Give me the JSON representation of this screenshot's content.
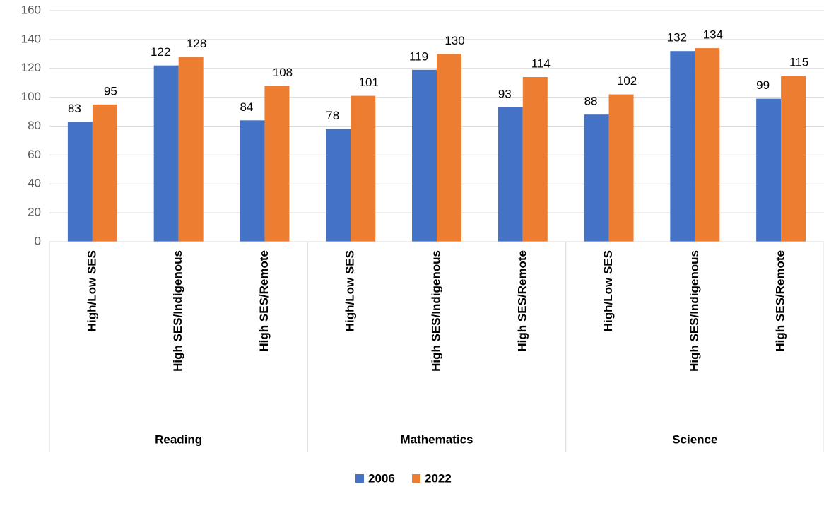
{
  "chart_data": {
    "type": "bar",
    "groups": [
      {
        "name": "Reading",
        "categories": [
          "High/Low SES",
          "High SES/Indigenous",
          "High SES/Remote"
        ]
      },
      {
        "name": "Mathematics",
        "categories": [
          "High/Low SES",
          "High SES/Indigenous",
          "High SES/Remote"
        ]
      },
      {
        "name": "Science",
        "categories": [
          "High/Low SES",
          "High SES/Indigenous",
          "High SES/Remote"
        ]
      }
    ],
    "series": [
      {
        "name": "2006",
        "color": "#4472c4",
        "values": [
          83,
          122,
          84,
          78,
          119,
          93,
          88,
          132,
          99
        ]
      },
      {
        "name": "2022",
        "color": "#ed7d31",
        "values": [
          95,
          128,
          108,
          101,
          130,
          114,
          102,
          134,
          115
        ]
      }
    ],
    "ylim": [
      0,
      160
    ],
    "yticks": [
      0,
      20,
      40,
      60,
      80,
      100,
      120,
      140,
      160
    ],
    "grid": true,
    "legend": "bottom"
  }
}
